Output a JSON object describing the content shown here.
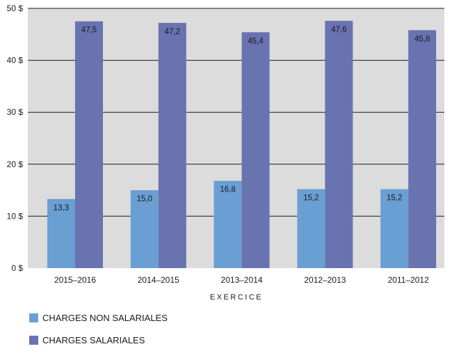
{
  "chart_data": {
    "type": "bar",
    "categories": [
      "2015–2016",
      "2014–2015",
      "2013–2014",
      "2012–2013",
      "2011–2012"
    ],
    "series": [
      {
        "name": "CHARGES NON SALARIALES",
        "color": "#6a9fd4",
        "values": [
          13.3,
          15.0,
          16.8,
          15.2,
          15.2
        ],
        "labels": [
          "13,3",
          "15,0",
          "16,8",
          "15,2",
          "15,2"
        ]
      },
      {
        "name": "CHARGES SALARIALES",
        "color": "#6873b0",
        "values": [
          47.5,
          47.2,
          45.4,
          47.6,
          45.8
        ],
        "labels": [
          "47,5",
          "47,2",
          "45,4",
          "47,6",
          "45,8"
        ]
      }
    ],
    "xlabel": "EXERCICE",
    "ylabel": "",
    "ylim": [
      0,
      50
    ],
    "yticks": [
      0,
      10,
      20,
      30,
      40,
      50
    ],
    "ytick_labels": [
      "0 $",
      "10 $",
      "20 $",
      "30 $",
      "40 $",
      "50 $"
    ],
    "grid": true,
    "plot_background": "#dcdcdc",
    "legend_position": "bottom-left"
  }
}
